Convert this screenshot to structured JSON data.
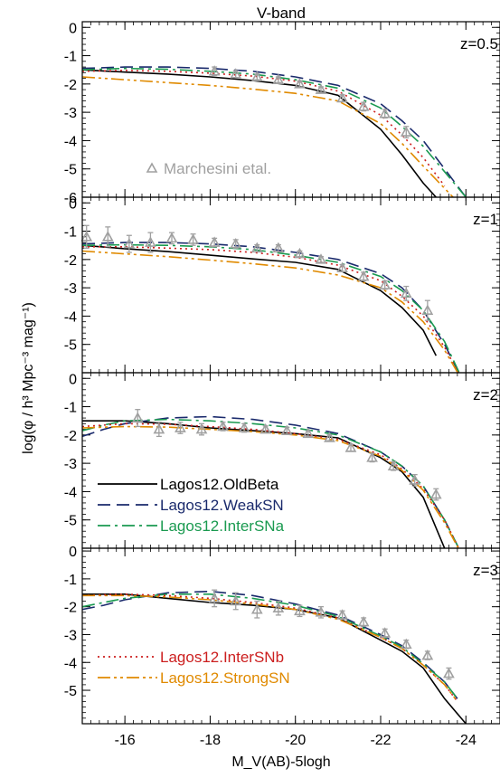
{
  "chart_data": {
    "type": "line",
    "title": "V-band",
    "xlabel": "M_V(AB)-5logh",
    "ylabel": "log(φ / h³ Mpc⁻³ mag⁻¹)",
    "xlim": [
      -15,
      -24.8
    ],
    "xticks": [
      -16,
      -18,
      -20,
      -22,
      -24
    ],
    "xtick_labels": [
      "-16",
      "-18",
      "-20",
      "-22",
      "-24"
    ],
    "colors": {
      "OldBeta": "#000000",
      "WeakSN": "#1a2a6c",
      "InterSNa": "#1a9a50",
      "InterSNb": "#cc1f1f",
      "StrongSN": "#e08a00",
      "obs": "#a0a0a0"
    },
    "legend": [
      {
        "key": "OldBeta",
        "name": "Lagos12.OldBeta",
        "panel": 2,
        "style": "solid"
      },
      {
        "key": "WeakSN",
        "name": "Lagos12.WeakSN",
        "panel": 2,
        "style": "dashed"
      },
      {
        "key": "InterSNa",
        "name": "Lagos12.InterSNa",
        "panel": 2,
        "style": "dashdot"
      },
      {
        "key": "InterSNb",
        "name": "Lagos12.InterSNb",
        "panel": 3,
        "style": "dotted"
      },
      {
        "key": "StrongSN",
        "name": "Lagos12.StrongSN",
        "panel": 3,
        "style": "dashdotdot"
      }
    ],
    "obs_label": "Marchesini etal.",
    "panels": [
      {
        "label": "z=0.5",
        "ylim": [
          -6,
          0.2
        ],
        "yticks": [
          0,
          -1,
          -2,
          -3,
          -4,
          -5,
          -6
        ],
        "ytick_labels": [
          "0",
          "-1",
          "-2",
          "-3",
          "-4",
          "-5",
          "-6"
        ],
        "series": [
          {
            "key": "OldBeta",
            "x": [
              -15,
              -16,
              -17,
              -18,
              -19,
              -20,
              -21,
              -22,
              -22.5,
              -23,
              -23.3
            ],
            "y": [
              -1.5,
              -1.58,
              -1.65,
              -1.75,
              -1.88,
              -2.05,
              -2.4,
              -3.6,
              -4.5,
              -5.5,
              -6
            ]
          },
          {
            "key": "WeakSN",
            "x": [
              -15,
              -16,
              -17,
              -18,
              -19,
              -20,
              -21,
              -22,
              -22.5,
              -23,
              -23.5,
              -24
            ],
            "y": [
              -1.45,
              -1.4,
              -1.4,
              -1.45,
              -1.55,
              -1.75,
              -2.05,
              -2.7,
              -3.3,
              -4,
              -5,
              -6
            ]
          },
          {
            "key": "InterSNa",
            "x": [
              -15,
              -16,
              -17,
              -18,
              -19,
              -20,
              -21,
              -22,
              -22.5,
              -23,
              -23.5,
              -24
            ],
            "y": [
              -1.5,
              -1.45,
              -1.48,
              -1.55,
              -1.65,
              -1.85,
              -2.15,
              -2.85,
              -3.5,
              -4.2,
              -5.1,
              -6
            ]
          },
          {
            "key": "InterSNb",
            "x": [
              -15,
              -16,
              -17,
              -18,
              -19,
              -20,
              -21,
              -22,
              -22.5,
              -23,
              -23.5
            ],
            "y": [
              -1.55,
              -1.52,
              -1.55,
              -1.62,
              -1.72,
              -1.9,
              -2.25,
              -3.1,
              -3.8,
              -4.6,
              -5.6
            ]
          },
          {
            "key": "StrongSN",
            "x": [
              -15,
              -16,
              -17,
              -18,
              -19,
              -20,
              -21,
              -22,
              -22.5,
              -23,
              -23.7
            ],
            "y": [
              -1.75,
              -1.85,
              -1.95,
              -2.05,
              -2.18,
              -2.33,
              -2.6,
              -3.4,
              -4.1,
              -4.9,
              -6
            ]
          }
        ],
        "obs": {
          "x": [
            -18.1,
            -18.6,
            -19.1,
            -19.6,
            -20.1,
            -20.6,
            -21.1,
            -21.6,
            -22.1,
            -22.6
          ],
          "y": [
            -1.55,
            -1.65,
            -1.75,
            -1.85,
            -2,
            -2.2,
            -2.5,
            -2.8,
            -3.05,
            -3.7
          ],
          "err": [
            0.15,
            0.12,
            0.1,
            0.1,
            0.1,
            0.1,
            0.12,
            0.15,
            0.15,
            0.2
          ]
        }
      },
      {
        "label": "z=1",
        "ylim": [
          -6,
          0.2
        ],
        "yticks": [
          0,
          -1,
          -2,
          -3,
          -4,
          -5
        ],
        "ytick_labels": [
          "0",
          "-1",
          "-2",
          "-3",
          "-4",
          "-5"
        ],
        "series": [
          {
            "key": "OldBeta",
            "x": [
              -15,
              -16,
              -17,
              -18,
              -19,
              -20,
              -21,
              -22,
              -22.5,
              -23,
              -23.3
            ],
            "y": [
              -1.5,
              -1.62,
              -1.72,
              -1.85,
              -1.98,
              -2.1,
              -2.35,
              -3.1,
              -3.7,
              -4.5,
              -5.4
            ]
          },
          {
            "key": "WeakSN",
            "x": [
              -15,
              -16,
              -17,
              -18,
              -19,
              -20,
              -21,
              -22,
              -22.5,
              -23,
              -23.5,
              -24
            ],
            "y": [
              -1.45,
              -1.4,
              -1.4,
              -1.45,
              -1.55,
              -1.75,
              -2,
              -2.5,
              -3,
              -3.8,
              -5,
              -6.5
            ]
          },
          {
            "key": "InterSNa",
            "x": [
              -15,
              -16,
              -17,
              -18,
              -19,
              -20,
              -21,
              -22,
              -22.5,
              -23,
              -23.5,
              -24
            ],
            "y": [
              -1.5,
              -1.48,
              -1.5,
              -1.55,
              -1.65,
              -1.85,
              -2.1,
              -2.6,
              -3.1,
              -3.8,
              -4.9,
              -6.5
            ]
          },
          {
            "key": "InterSNb",
            "x": [
              -15,
              -16,
              -17,
              -18,
              -19,
              -20,
              -21,
              -22,
              -22.5,
              -23,
              -23.5,
              -24
            ],
            "y": [
              -1.55,
              -1.55,
              -1.6,
              -1.65,
              -1.75,
              -1.92,
              -2.2,
              -2.75,
              -3.3,
              -4,
              -5.1,
              -6.5
            ]
          },
          {
            "key": "StrongSN",
            "x": [
              -15,
              -16,
              -17,
              -18,
              -19,
              -20,
              -21,
              -22,
              -22.5,
              -23,
              -23.5,
              -24
            ],
            "y": [
              -1.7,
              -1.8,
              -1.9,
              -2.02,
              -2.15,
              -2.3,
              -2.55,
              -3,
              -3.5,
              -4.2,
              -5.2,
              -6.5
            ]
          }
        ],
        "obs": {
          "x": [
            -15.1,
            -15.6,
            -16.1,
            -16.6,
            -17.1,
            -17.6,
            -18.1,
            -18.6,
            -19.1,
            -19.6,
            -20.1,
            -20.6,
            -21.1,
            -21.6,
            -22.1,
            -22.6,
            -23.1
          ],
          "y": [
            -1.2,
            -1.2,
            -1.45,
            -1.4,
            -1.25,
            -1.3,
            -1.4,
            -1.45,
            -1.6,
            -1.6,
            -1.8,
            -2,
            -2.3,
            -2.6,
            -2.9,
            -3.2,
            -3.8
          ],
          "err": [
            0.4,
            0.35,
            0.3,
            0.35,
            0.2,
            0.2,
            0.15,
            0.15,
            0.12,
            0.12,
            0.1,
            0.1,
            0.12,
            0.15,
            0.15,
            0.25,
            0.35
          ]
        }
      },
      {
        "label": "z=2",
        "ylim": [
          -6,
          0.2
        ],
        "yticks": [
          0,
          -1,
          -2,
          -3,
          -4,
          -5
        ],
        "ytick_labels": [
          "0",
          "-1",
          "-2",
          "-3",
          "-4",
          "-5"
        ],
        "series": [
          {
            "key": "OldBeta",
            "x": [
              -15,
              -16,
              -17,
              -18,
              -19,
              -20,
              -21,
              -22,
              -22.5,
              -23,
              -23.5
            ],
            "y": [
              -1.5,
              -1.5,
              -1.6,
              -1.75,
              -1.85,
              -1.95,
              -2.1,
              -2.8,
              -3.3,
              -4.2,
              -6
            ]
          },
          {
            "key": "WeakSN",
            "x": [
              -15,
              -15.5,
              -16,
              -17,
              -18,
              -19,
              -20,
              -21,
              -22,
              -22.5,
              -23,
              -23.5,
              -24
            ],
            "y": [
              -2.05,
              -1.8,
              -1.6,
              -1.4,
              -1.35,
              -1.45,
              -1.65,
              -1.95,
              -2.6,
              -3.1,
              -3.8,
              -5,
              -6.5
            ]
          },
          {
            "key": "InterSNa",
            "x": [
              -15,
              -15.5,
              -16,
              -17,
              -18,
              -19,
              -20,
              -21,
              -22,
              -22.5,
              -23,
              -23.5,
              -24
            ],
            "y": [
              -1.85,
              -1.65,
              -1.5,
              -1.45,
              -1.5,
              -1.6,
              -1.75,
              -2,
              -2.6,
              -3.1,
              -3.8,
              -5,
              -6.5
            ]
          },
          {
            "key": "InterSNb",
            "x": [
              -15,
              -16,
              -17,
              -18,
              -19,
              -20,
              -21,
              -22,
              -22.5,
              -23,
              -23.5,
              -24
            ],
            "y": [
              -1.7,
              -1.6,
              -1.62,
              -1.7,
              -1.8,
              -1.95,
              -2.15,
              -2.7,
              -3.2,
              -3.9,
              -5,
              -6.5
            ]
          },
          {
            "key": "StrongSN",
            "x": [
              -15,
              -16,
              -17,
              -18,
              -19,
              -20,
              -21,
              -22,
              -22.5,
              -23,
              -23.5,
              -24
            ],
            "y": [
              -1.75,
              -1.7,
              -1.72,
              -1.8,
              -1.88,
              -2,
              -2.2,
              -2.75,
              -3.25,
              -3.95,
              -5.1,
              -6.5
            ]
          }
        ],
        "obs": {
          "x": [
            -16.3,
            -16.8,
            -17.3,
            -17.8,
            -18.3,
            -18.8,
            -19.3,
            -19.8,
            -20.3,
            -20.8,
            -21.3,
            -21.8,
            -22.3,
            -22.8,
            -23.3
          ],
          "y": [
            -1.4,
            -1.8,
            -1.75,
            -1.8,
            -1.7,
            -1.75,
            -1.8,
            -1.85,
            -1.95,
            -2.1,
            -2.45,
            -2.8,
            -3.1,
            -3.6,
            -4.1
          ],
          "err": [
            0.3,
            0.25,
            0.2,
            0.2,
            0.15,
            0.15,
            0.12,
            0.12,
            0.1,
            0.1,
            0.12,
            0.15,
            0.15,
            0.2,
            0.2
          ]
        }
      },
      {
        "label": "z=3",
        "ylim": [
          -6.2,
          0.1
        ],
        "yticks": [
          0,
          -1,
          -2,
          -3,
          -4,
          -5
        ],
        "ytick_labels": [
          "0",
          "-1",
          "-2",
          "-3",
          "-4",
          "-5"
        ],
        "series": [
          {
            "key": "OldBeta",
            "x": [
              -15,
              -16,
              -17,
              -18,
              -19,
              -20,
              -21,
              -22,
              -22.5,
              -23,
              -23.5,
              -24
            ],
            "y": [
              -1.55,
              -1.55,
              -1.7,
              -1.85,
              -1.95,
              -2.1,
              -2.4,
              -3.2,
              -3.6,
              -4.2,
              -5.3,
              -6.2
            ]
          },
          {
            "key": "WeakSN",
            "x": [
              -15,
              -15.5,
              -16,
              -17,
              -18,
              -19,
              -20,
              -21,
              -22,
              -22.5,
              -23,
              -23.5,
              -23.8
            ],
            "y": [
              -2.1,
              -1.95,
              -1.75,
              -1.5,
              -1.45,
              -1.6,
              -1.9,
              -2.3,
              -3,
              -3.4,
              -4,
              -4.7,
              -5.3
            ]
          },
          {
            "key": "InterSNa",
            "x": [
              -15,
              -15.5,
              -16,
              -17,
              -18,
              -19,
              -20,
              -21,
              -22,
              -22.5,
              -23,
              -23.5,
              -23.8
            ],
            "y": [
              -2,
              -1.85,
              -1.7,
              -1.55,
              -1.55,
              -1.7,
              -1.95,
              -2.35,
              -3.05,
              -3.45,
              -4.05,
              -4.7,
              -5.3
            ]
          },
          {
            "key": "InterSNb",
            "x": [
              -15,
              -16,
              -17,
              -18,
              -19,
              -20,
              -21,
              -22,
              -22.5,
              -23,
              -23.5,
              -23.8
            ],
            "y": [
              -1.6,
              -1.55,
              -1.6,
              -1.7,
              -1.85,
              -2.05,
              -2.4,
              -3.1,
              -3.5,
              -4.1,
              -4.8,
              -5.4
            ]
          },
          {
            "key": "StrongSN",
            "x": [
              -15,
              -16,
              -17,
              -18,
              -19,
              -20,
              -21,
              -22,
              -22.5,
              -23,
              -23.5,
              -23.8
            ],
            "y": [
              -1.6,
              -1.6,
              -1.65,
              -1.75,
              -1.9,
              -2.1,
              -2.45,
              -3.1,
              -3.5,
              -4.1,
              -4.8,
              -5.4
            ]
          }
        ],
        "obs": {
          "x": [
            -18.1,
            -18.6,
            -19.1,
            -19.6,
            -20.1,
            -20.6,
            -21.1,
            -21.6,
            -22.1,
            -22.6,
            -23.1,
            -23.6
          ],
          "y": [
            -1.7,
            -1.8,
            -2.1,
            -2.05,
            -2.15,
            -2.2,
            -2.3,
            -2.55,
            -2.95,
            -3.35,
            -3.75,
            -4.4
          ],
          "err": [
            0.3,
            0.3,
            0.3,
            0.25,
            0.2,
            0.2,
            0.15,
            0.15,
            0.15,
            0.15,
            0.15,
            0.2
          ]
        }
      }
    ]
  }
}
